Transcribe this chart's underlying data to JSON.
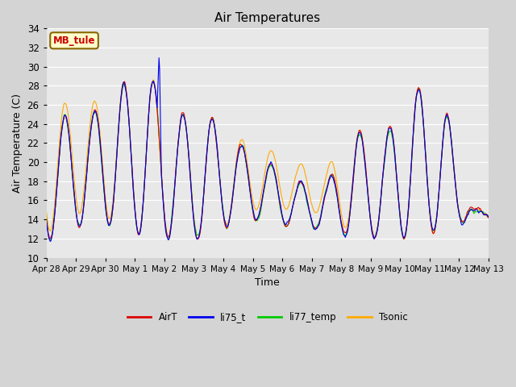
{
  "title": "Air Temperatures",
  "xlabel": "Time",
  "ylabel": "Air Temperature (C)",
  "ylim": [
    10,
    34
  ],
  "plot_bg_color": "#e8e8e8",
  "fig_bg_color": "#d4d4d4",
  "grid_color": "white",
  "annotation_text": "MB_tule",
  "annotation_bg": "#ffffcc",
  "annotation_border": "#886600",
  "annotation_text_color": "#cc0000",
  "legend_entries": [
    "AirT",
    "li75_t",
    "li77_temp",
    "Tsonic"
  ],
  "line_colors": [
    "#dd0000",
    "#0000ee",
    "#00cc00",
    "#ffaa00"
  ],
  "x_tick_labels": [
    "Apr 28",
    "Apr 29",
    "Apr 30",
    "May 1",
    "May 2",
    "May 3",
    "May 4",
    "May 5",
    "May 6",
    "May 7",
    "May 8",
    "May 9",
    "May 10",
    "May 11",
    "May 12",
    "May 13"
  ],
  "figsize": [
    6.4,
    4.8
  ],
  "dpi": 100
}
